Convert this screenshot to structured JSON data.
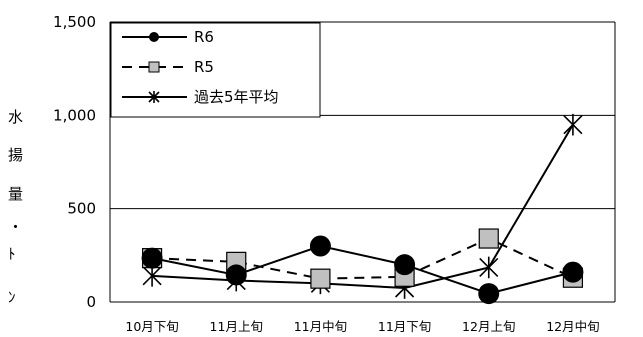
{
  "chart_data": {
    "type": "line",
    "categories": [
      "10月下旬",
      "11月上旬",
      "11月中旬",
      "11月下旬",
      "12月上旬",
      "12月中旬"
    ],
    "ylabel": "水揚量・ﾄﾝ",
    "ylim": [
      0,
      1500
    ],
    "yticks": [
      0,
      500,
      1000,
      1500
    ],
    "ytick_labels": [
      "0",
      "500",
      "1,000",
      "1,500"
    ],
    "grid": true,
    "legend_position": "top-left",
    "series": [
      {
        "name": "R6",
        "values": [
          235,
          145,
          300,
          200,
          45,
          160
        ],
        "color": "#000000",
        "marker": "circle",
        "line": "solid"
      },
      {
        "name": "R5",
        "values": [
          235,
          215,
          125,
          135,
          340,
          130
        ],
        "color": "#000000",
        "marker": "square",
        "line": "dashed"
      },
      {
        "name": "過去5年平均",
        "values": [
          140,
          115,
          100,
          75,
          185,
          950
        ],
        "color": "#000000",
        "marker": "star",
        "line": "solid"
      }
    ]
  }
}
